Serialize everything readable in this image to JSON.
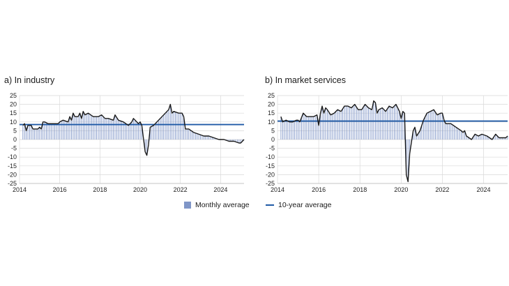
{
  "chart_data": [
    {
      "type": "bar",
      "title": "a)  In industry",
      "x_range": [
        "2014-01",
        "2025-03"
      ],
      "xticks": [
        "2014",
        "2016",
        "2018",
        "2020",
        "2022",
        "2024"
      ],
      "yticks": [
        "25",
        "20",
        "15",
        "10",
        "5",
        "0",
        "-5",
        "-10",
        "-15",
        "-20",
        "-25"
      ],
      "ylim": [
        -25,
        25
      ],
      "grid": true,
      "ten_year_average": 8.5,
      "series": [
        {
          "name": "Monthly average",
          "kind": "bar+line",
          "points": [
            [
              "2014-03",
              8
            ],
            [
              "2014-04",
              9
            ],
            [
              "2014-05",
              5
            ],
            [
              "2014-06",
              8
            ],
            [
              "2014-08",
              8
            ],
            [
              "2014-09",
              6
            ],
            [
              "2014-12",
              6
            ],
            [
              "2015-01",
              7
            ],
            [
              "2015-02",
              6
            ],
            [
              "2015-03",
              10
            ],
            [
              "2015-04",
              10
            ],
            [
              "2015-06",
              9
            ],
            [
              "2015-09",
              9
            ],
            [
              "2015-12",
              9
            ],
            [
              "2016-01",
              10
            ],
            [
              "2016-03",
              11
            ],
            [
              "2016-06",
              10
            ],
            [
              "2016-07",
              13
            ],
            [
              "2016-08",
              11
            ],
            [
              "2016-09",
              15
            ],
            [
              "2016-10",
              13
            ],
            [
              "2016-12",
              13
            ],
            [
              "2017-01",
              15
            ],
            [
              "2017-02",
              12
            ],
            [
              "2017-03",
              16
            ],
            [
              "2017-04",
              14
            ],
            [
              "2017-06",
              15
            ],
            [
              "2017-09",
              13
            ],
            [
              "2017-12",
              13
            ],
            [
              "2018-02",
              14
            ],
            [
              "2018-04",
              12
            ],
            [
              "2018-06",
              12
            ],
            [
              "2018-09",
              11
            ],
            [
              "2018-10",
              14
            ],
            [
              "2018-12",
              11
            ],
            [
              "2019-03",
              10
            ],
            [
              "2019-06",
              8
            ],
            [
              "2019-08",
              10
            ],
            [
              "2019-09",
              12
            ],
            [
              "2019-12",
              9
            ],
            [
              "2020-01",
              10
            ],
            [
              "2020-02",
              8
            ],
            [
              "2020-04",
              -7
            ],
            [
              "2020-05",
              -9
            ],
            [
              "2020-06",
              -3
            ],
            [
              "2020-07",
              7
            ],
            [
              "2020-09",
              8
            ],
            [
              "2020-12",
              11
            ],
            [
              "2021-02",
              13
            ],
            [
              "2021-04",
              15
            ],
            [
              "2021-06",
              17
            ],
            [
              "2021-07",
              20
            ],
            [
              "2021-08",
              15
            ],
            [
              "2021-09",
              16
            ],
            [
              "2021-12",
              15
            ],
            [
              "2022-02",
              15
            ],
            [
              "2022-03",
              13
            ],
            [
              "2022-04",
              6
            ],
            [
              "2022-06",
              6
            ],
            [
              "2022-09",
              4
            ],
            [
              "2022-12",
              3
            ],
            [
              "2023-03",
              2
            ],
            [
              "2023-06",
              2
            ],
            [
              "2023-09",
              1
            ],
            [
              "2023-12",
              0
            ],
            [
              "2024-03",
              0
            ],
            [
              "2024-06",
              -1
            ],
            [
              "2024-09",
              -1
            ],
            [
              "2024-12",
              -2
            ],
            [
              "2025-01",
              -2
            ],
            [
              "2025-02",
              -1
            ],
            [
              "2025-03",
              0
            ]
          ]
        },
        {
          "name": "10-year average",
          "kind": "line"
        }
      ]
    },
    {
      "type": "bar",
      "title": "b)  In market services",
      "x_range": [
        "2014-01",
        "2025-03"
      ],
      "xticks": [
        "2014",
        "2016",
        "2018",
        "2020",
        "2022",
        "2024"
      ],
      "yticks": [
        "25",
        "20",
        "15",
        "10",
        "5",
        "0",
        "-5",
        "-10",
        "-15",
        "-20",
        "-25"
      ],
      "ylim": [
        -25,
        25
      ],
      "grid": true,
      "ten_year_average": 10.5,
      "series": [
        {
          "name": "Monthly average",
          "kind": "bar+line",
          "points": [
            [
              "2014-03",
              13
            ],
            [
              "2014-04",
              10
            ],
            [
              "2014-06",
              11
            ],
            [
              "2014-08",
              10
            ],
            [
              "2014-10",
              10
            ],
            [
              "2014-12",
              11
            ],
            [
              "2015-01",
              11
            ],
            [
              "2015-02",
              10
            ],
            [
              "2015-04",
              15
            ],
            [
              "2015-06",
              13
            ],
            [
              "2015-08",
              13
            ],
            [
              "2015-10",
              13
            ],
            [
              "2015-12",
              14
            ],
            [
              "2016-01",
              8
            ],
            [
              "2016-02",
              15
            ],
            [
              "2016-03",
              19
            ],
            [
              "2016-04",
              15
            ],
            [
              "2016-05",
              18
            ],
            [
              "2016-06",
              17
            ],
            [
              "2016-08",
              14
            ],
            [
              "2016-10",
              15
            ],
            [
              "2016-12",
              17
            ],
            [
              "2017-02",
              16
            ],
            [
              "2017-04",
              19
            ],
            [
              "2017-06",
              19
            ],
            [
              "2017-08",
              18
            ],
            [
              "2017-10",
              20
            ],
            [
              "2017-12",
              17
            ],
            [
              "2018-02",
              17
            ],
            [
              "2018-04",
              20
            ],
            [
              "2018-06",
              18
            ],
            [
              "2018-08",
              17
            ],
            [
              "2018-09",
              22
            ],
            [
              "2018-10",
              21
            ],
            [
              "2018-11",
              15
            ],
            [
              "2018-12",
              17
            ],
            [
              "2019-02",
              18
            ],
            [
              "2019-04",
              16
            ],
            [
              "2019-06",
              19
            ],
            [
              "2019-08",
              18
            ],
            [
              "2019-10",
              20
            ],
            [
              "2019-12",
              16
            ],
            [
              "2020-01",
              12
            ],
            [
              "2020-02",
              16
            ],
            [
              "2020-03",
              15
            ],
            [
              "2020-04",
              -20
            ],
            [
              "2020-05",
              -24
            ],
            [
              "2020-06",
              -8
            ],
            [
              "2020-08",
              5
            ],
            [
              "2020-09",
              7
            ],
            [
              "2020-10",
              2
            ],
            [
              "2020-12",
              5
            ],
            [
              "2021-02",
              11
            ],
            [
              "2021-04",
              15
            ],
            [
              "2021-06",
              16
            ],
            [
              "2021-08",
              17
            ],
            [
              "2021-10",
              14
            ],
            [
              "2021-12",
              15
            ],
            [
              "2022-01",
              15
            ],
            [
              "2022-02",
              11
            ],
            [
              "2022-03",
              9
            ],
            [
              "2022-06",
              9
            ],
            [
              "2022-09",
              7
            ],
            [
              "2022-12",
              5
            ],
            [
              "2023-01",
              4
            ],
            [
              "2023-02",
              5
            ],
            [
              "2023-03",
              2
            ],
            [
              "2023-06",
              0
            ],
            [
              "2023-08",
              3
            ],
            [
              "2023-10",
              2
            ],
            [
              "2023-12",
              3
            ],
            [
              "2024-03",
              2
            ],
            [
              "2024-06",
              0
            ],
            [
              "2024-08",
              3
            ],
            [
              "2024-10",
              1
            ],
            [
              "2024-12",
              1
            ],
            [
              "2025-02",
              1
            ],
            [
              "2025-03",
              2
            ]
          ]
        },
        {
          "name": "10-year average",
          "kind": "line"
        }
      ]
    }
  ],
  "colors": {
    "bar": "#8096c8",
    "line": "#1a1a1a",
    "average": "#1f5aa6",
    "grid": "#d9d9d9"
  },
  "legend": {
    "monthly": "Monthly average",
    "ten_year": "10-year average"
  }
}
